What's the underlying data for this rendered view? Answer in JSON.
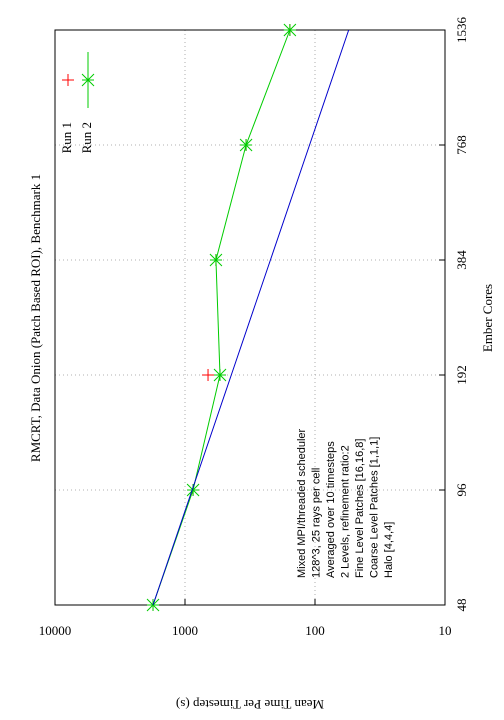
{
  "chart_data": {
    "type": "line",
    "title": "RMCRT, Data Onion (Patch Based ROI), Benchmark 1",
    "x_label": "Ember Cores",
    "y_label": "Mean Time Per Timestep (s)",
    "annotation": [
      "Mixed MPI/threaded scheduler",
      "128^3, 25 rays per cell",
      "Averaged over 10 timesteps",
      "2 Levels, refinement ratio:2",
      "Fine Level Patches [16,16,8]",
      "Coarse Level Patches [1,1,1]",
      "Halo [4,4,4]"
    ],
    "x": [
      48,
      96,
      192,
      384,
      768,
      1536
    ],
    "xlim": [
      48,
      1536
    ],
    "xticks": [
      48,
      96,
      192,
      384,
      768,
      1536
    ],
    "xlog": 2,
    "ylim": [
      10,
      10000
    ],
    "yticks": [
      10,
      100,
      1000,
      10000
    ],
    "ylog": 10,
    "grid": true,
    "legend": "top-right",
    "series": [
      {
        "name": "Run 1",
        "color": "#ff0000",
        "marker": "+",
        "line": false,
        "values": [
          1762,
          867,
          665,
          578,
          339,
          156
        ]
      },
      {
        "name": "Run 2",
        "color": "#00cc00",
        "marker": "*",
        "line": true,
        "values": [
          1762,
          867,
          538,
          578,
          339,
          156
        ]
      },
      {
        "color": "#0000cc",
        "marker": "none",
        "line": true,
        "values": [
          1762,
          881,
          440.5,
          220.25,
          110.125,
          55.0625
        ]
      }
    ]
  }
}
